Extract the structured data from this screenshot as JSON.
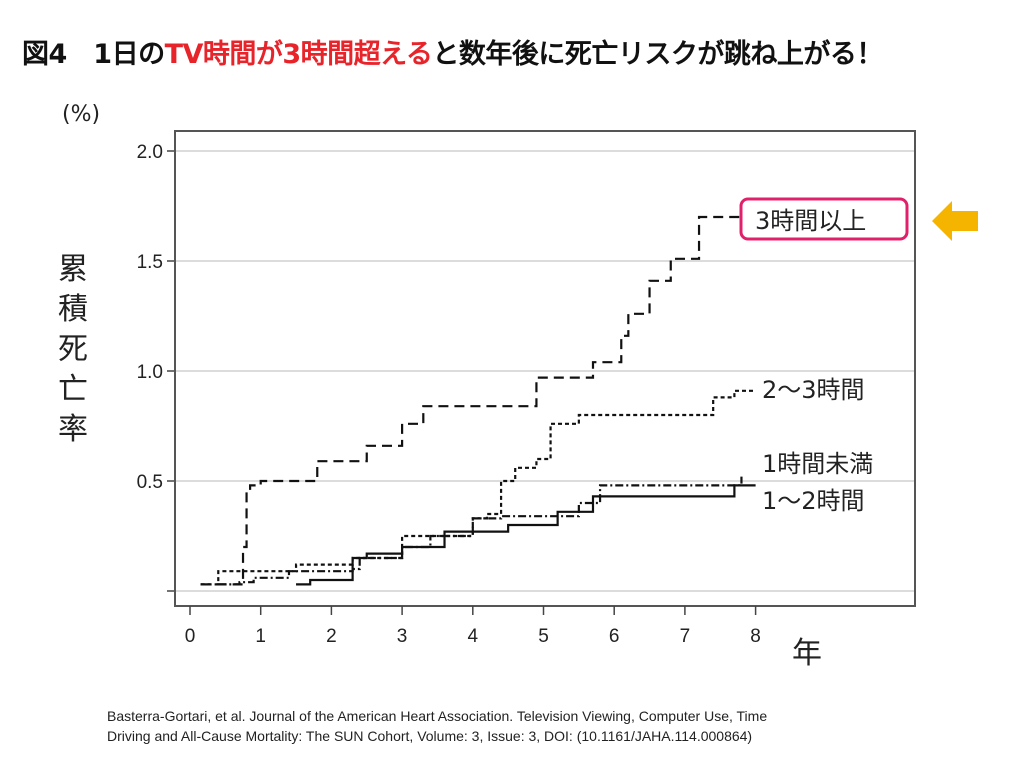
{
  "title": {
    "prefix": "図4　1日の",
    "highlight": "TV時間が3時間超える",
    "suffix": "と数年後に死亡リスクが跳ね上がる！",
    "highlight_color": "#e8242b"
  },
  "citation": {
    "line1": "Basterra-Gortari, et al. Journal of the American Heart Association. Television Viewing, Computer Use, Time",
    "line2": "Driving and All-Cause Mortality: The SUN Cohort, Volume: 3, Issue: 3, DOI: (10.1161/JAHA.114.000864)"
  },
  "chart_data": {
    "type": "line",
    "step": true,
    "xlabel": "年",
    "ylabel": "累積死亡率",
    "yunit": "(%)",
    "xlim": [
      0,
      10.2
    ],
    "ylim": [
      -0.05,
      2.1
    ],
    "xticks": [
      "0",
      "1",
      "2",
      "3",
      "4",
      "5",
      "6",
      "7",
      "8"
    ],
    "yticks": [
      {
        "v": 0,
        "label": ""
      },
      {
        "v": 0.5,
        "label": "0.5"
      },
      {
        "v": 1.0,
        "label": "1.0"
      },
      {
        "v": 1.5,
        "label": "1.5"
      },
      {
        "v": 2.0,
        "label": "2.0"
      }
    ],
    "grid": "horizontal",
    "highlight_box_color": "#e0206a",
    "arrow_color": "#f5b400",
    "series": [
      {
        "name": "3時間以上",
        "style": "long-dash",
        "boxed": true,
        "points": [
          [
            0.15,
            0.03
          ],
          [
            0.75,
            0.03
          ],
          [
            0.75,
            0.2
          ],
          [
            0.8,
            0.45
          ],
          [
            0.85,
            0.48
          ],
          [
            1.0,
            0.5
          ],
          [
            1.8,
            0.5
          ],
          [
            1.8,
            0.59
          ],
          [
            2.5,
            0.59
          ],
          [
            2.5,
            0.66
          ],
          [
            3.0,
            0.66
          ],
          [
            3.0,
            0.76
          ],
          [
            3.3,
            0.76
          ],
          [
            3.3,
            0.84
          ],
          [
            4.9,
            0.84
          ],
          [
            4.9,
            0.97
          ],
          [
            5.7,
            0.97
          ],
          [
            5.7,
            1.04
          ],
          [
            6.1,
            1.04
          ],
          [
            6.1,
            1.16
          ],
          [
            6.2,
            1.26
          ],
          [
            6.5,
            1.26
          ],
          [
            6.5,
            1.41
          ],
          [
            6.8,
            1.41
          ],
          [
            6.8,
            1.51
          ],
          [
            7.2,
            1.51
          ],
          [
            7.2,
            1.7
          ],
          [
            7.8,
            1.7
          ]
        ]
      },
      {
        "name": "2～3時間",
        "style": "short-dash",
        "points": [
          [
            0.15,
            0.03
          ],
          [
            0.4,
            0.03
          ],
          [
            0.4,
            0.09
          ],
          [
            1.5,
            0.09
          ],
          [
            1.5,
            0.12
          ],
          [
            2.3,
            0.13
          ],
          [
            2.3,
            0.15
          ],
          [
            3.0,
            0.15
          ],
          [
            3.0,
            0.25
          ],
          [
            4.0,
            0.33
          ],
          [
            4.2,
            0.35
          ],
          [
            4.4,
            0.5
          ],
          [
            4.6,
            0.56
          ],
          [
            4.9,
            0.6
          ],
          [
            5.1,
            0.76
          ],
          [
            5.5,
            0.76
          ],
          [
            5.5,
            0.8
          ],
          [
            7.3,
            0.8
          ],
          [
            7.4,
            0.88
          ],
          [
            7.7,
            0.91
          ],
          [
            8.0,
            0.91
          ]
        ]
      },
      {
        "name": "1時間未満",
        "style": "dash-dot",
        "points": [
          [
            0.4,
            0.03
          ],
          [
            0.7,
            0.04
          ],
          [
            0.9,
            0.06
          ],
          [
            1.3,
            0.06
          ],
          [
            1.4,
            0.09
          ],
          [
            2.3,
            0.1
          ],
          [
            2.4,
            0.15
          ],
          [
            3.0,
            0.2
          ],
          [
            3.4,
            0.25
          ],
          [
            4.0,
            0.33
          ],
          [
            4.4,
            0.34
          ],
          [
            5.3,
            0.34
          ],
          [
            5.5,
            0.4
          ],
          [
            5.8,
            0.48
          ],
          [
            7.8,
            0.48
          ],
          [
            7.8,
            0.52
          ]
        ]
      },
      {
        "name": "1～2時間",
        "style": "solid",
        "points": [
          [
            1.5,
            0.03
          ],
          [
            1.7,
            0.05
          ],
          [
            2.1,
            0.05
          ],
          [
            2.3,
            0.15
          ],
          [
            2.5,
            0.17
          ],
          [
            3.0,
            0.2
          ],
          [
            3.6,
            0.2
          ],
          [
            3.6,
            0.27
          ],
          [
            4.5,
            0.27
          ],
          [
            4.5,
            0.3
          ],
          [
            5.2,
            0.3
          ],
          [
            5.2,
            0.36
          ],
          [
            5.7,
            0.36
          ],
          [
            5.7,
            0.43
          ],
          [
            7.7,
            0.43
          ],
          [
            7.7,
            0.48
          ],
          [
            8.0,
            0.48
          ]
        ]
      }
    ]
  }
}
